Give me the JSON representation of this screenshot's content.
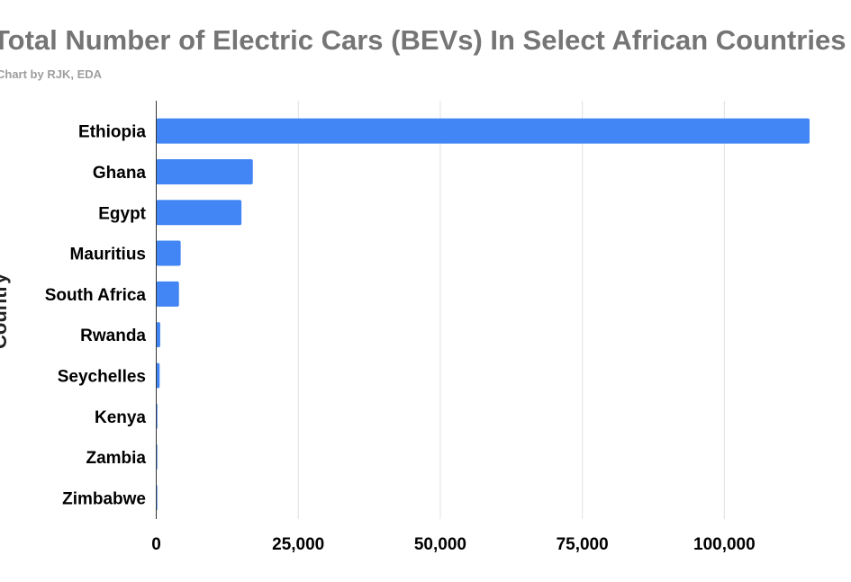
{
  "chart_data": {
    "type": "bar",
    "orientation": "horizontal",
    "title": "Total Number of Electric Cars (BEVs) In Select African Countries",
    "subtitle": "Chart by RJK, EDA",
    "ylabel": "Country",
    "xlabel": "",
    "categories": [
      "Ethiopia",
      "Ghana",
      "Egypt",
      "Mauritius",
      "South Africa",
      "Rwanda",
      "Seychelles",
      "Kenya",
      "Zambia",
      "Zimbabwe"
    ],
    "values": [
      115000,
      17000,
      15000,
      4300,
      4000,
      700,
      600,
      200,
      150,
      100
    ],
    "xlim": [
      0,
      115000
    ],
    "xticks": [
      0,
      25000,
      50000,
      75000,
      100000
    ],
    "xtick_labels": [
      "0",
      "25,000",
      "50,000",
      "75,000",
      "100,000"
    ],
    "grid": "vertical",
    "bar_color": "#4285f4",
    "grid_color": "#e0e0e0",
    "axis_color": "#333333"
  }
}
